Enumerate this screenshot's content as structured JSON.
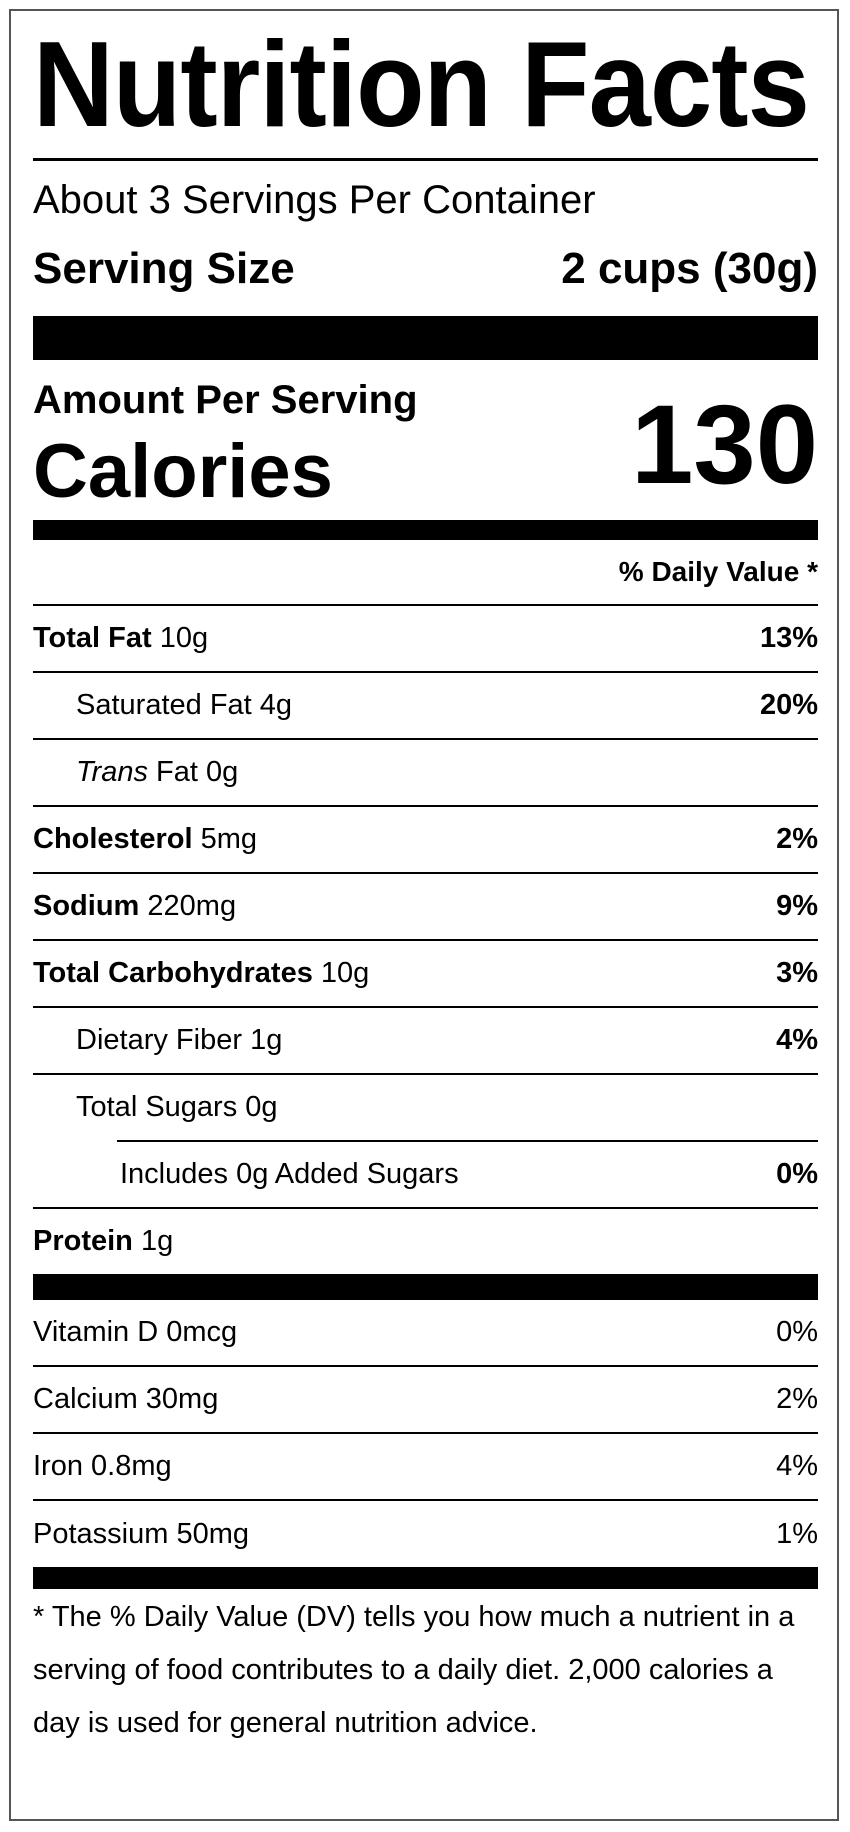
{
  "title": "Nutrition Facts",
  "servings_per_container": "About 3 Servings Per Container",
  "serving_size": {
    "label": "Serving Size",
    "value": "2 cups (30g)"
  },
  "amount_per_serving": "Amount Per Serving",
  "calories": {
    "label": "Calories",
    "value": "130"
  },
  "daily_value_header": "% Daily Value *",
  "nutrients": [
    {
      "name": "Total Fat",
      "amount": "10g",
      "dv": "13%"
    },
    {
      "name": "Saturated Fat",
      "amount": "4g",
      "dv": "20%"
    },
    {
      "name_italic": "Trans",
      "name": "Fat",
      "amount": "0g",
      "dv": ""
    },
    {
      "name": "Cholesterol",
      "amount": "5mg",
      "dv": "2%"
    },
    {
      "name": "Sodium",
      "amount": "220mg",
      "dv": "9%"
    },
    {
      "name": "Total Carbohydrates",
      "amount": "10g",
      "dv": "3%"
    },
    {
      "name": "Dietary Fiber",
      "amount": "1g",
      "dv": "4%"
    },
    {
      "name": "Total Sugars",
      "amount": "0g",
      "dv": ""
    },
    {
      "text": "Includes 0g Added Sugars",
      "dv": "0%"
    },
    {
      "name": "Protein",
      "amount": "1g",
      "dv": ""
    }
  ],
  "vitamins": [
    {
      "text": "Vitamin D 0mcg",
      "dv": "0%"
    },
    {
      "text": "Calcium 30mg",
      "dv": "2%"
    },
    {
      "text": "Iron 0.8mg",
      "dv": "4%"
    },
    {
      "text": "Potassium 50mg",
      "dv": "1%"
    }
  ],
  "footnote": "* The % Daily Value (DV) tells you how much a nutrient in a serving of food contributes to a daily diet. 2,000 calories a day is used for general nutrition advice."
}
